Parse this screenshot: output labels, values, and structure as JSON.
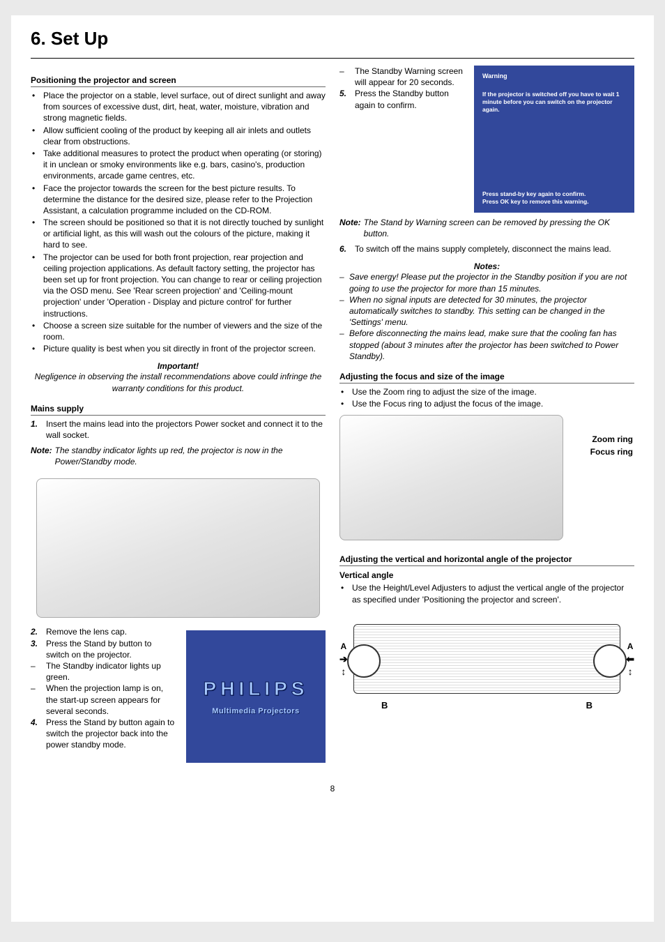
{
  "title": "6. Set Up",
  "page_number": "8",
  "colors": {
    "page_bg": "#eaeaea",
    "panel_bg": "#ffffff",
    "philips_blue": "#32489b",
    "philips_text": "#a7c9ff",
    "text": "#000000"
  },
  "left": {
    "positioning_head": "Positioning the projector and screen",
    "positioning_bullets": [
      "Place the projector on a stable, level surface, out of direct sunlight and away from sources of excessive dust, dirt, heat, water, moisture, vibration and strong magnetic fields.",
      "Allow sufficient cooling of the product by keeping all air inlets and outlets clear from obstructions.",
      "Take additional measures to protect the product when operating (or storing) it in unclean or smoky environments like e.g. bars, casino's, production environments, arcade game centres, etc.",
      "Face the projector towards the screen for the best picture results. To determine the distance for the desired size, please refer to the Projection Assistant, a calculation programme included on the CD-ROM.",
      "The screen should be positioned so that it is not directly touched by sunlight or artificial light, as this will wash out the colours of the picture, making it hard to see.",
      "The projector can be used for both front projection, rear projection and ceiling projection applications. As default factory setting, the projector has been set up for front projection. You can change to rear or ceiling projection via the OSD menu. See 'Rear screen projection' and 'Ceiling-mount projection' under 'Operation - Display and picture control' for further instructions.",
      "Choose a screen size suitable for the number of viewers and the size of the room.",
      "Picture quality is best when you sit directly in front of the projector screen."
    ],
    "important_label": "Important!",
    "important_text": "Negligence in observing the install recommendations above could infringe the warranty conditions for this product.",
    "mains_head": "Mains supply",
    "step1_num": "1.",
    "step1": "Insert the mains lead into the projectors Power socket and connect it to the wall socket.",
    "note1_label": "Note:",
    "note1_text": "The standby indicator lights up red, the projector is now in the Power/Standby mode.",
    "lower_items": [
      {
        "num": "2.",
        "text": "Remove the lens cap."
      },
      {
        "num": "3.",
        "text": "Press the Stand by button to switch on the projector."
      },
      {
        "num": "–",
        "text": "The Standby indicator lights up green."
      },
      {
        "num": "–",
        "text": "When the projection lamp is on, the start-up screen appears for several seconds."
      },
      {
        "num": "4.",
        "text": "Press the Stand by button again to switch the projector back into the power standby mode."
      }
    ],
    "philips_word": "PHILIPS",
    "philips_sub": "Multimedia Projectors"
  },
  "right": {
    "top_items": [
      {
        "num": "–",
        "text": "The Standby Warning screen will appear for 20 seconds."
      },
      {
        "num": "5.",
        "text": "Press the Standby button again to confirm."
      }
    ],
    "warning_title": "Warning",
    "warning_mid": "If the projector is switched off you have to wait 1 minute before you can switch on the projector again.",
    "warning_foot1": "Press stand-by key again to confirm.",
    "warning_foot2": "Press OK key to remove this warning.",
    "note2_label": "Note:",
    "note2_text": "The Stand by Warning screen can be removed by pressing the OK button.",
    "step6_num": "6.",
    "step6": "To switch off the mains supply completely, disconnect the mains lead.",
    "notes_head": "Notes:",
    "notes_list": [
      "Save energy! Please put the projector in the Standby position if you are not going to use the projector for more than 15 minutes.",
      "When no signal inputs are detected for 30 minutes, the projector automatically switches to standby. This setting can be changed in the 'Settings' menu.",
      "Before disconnecting the mains lead, make sure that the cooling fan has stopped (about 3 minutes after the projector has been switched to Power Standby)."
    ],
    "adjust_focus_head": "Adjusting the focus and size of the image",
    "adjust_focus_bullets": [
      "Use the Zoom ring to adjust the size of the image.",
      "Use the Focus ring to adjust the focus of the image."
    ],
    "zoom_label": "Zoom ring",
    "focus_label": "Focus ring",
    "adjust_angle_head": "Adjusting the vertical and horizontal angle of the projector",
    "vertical_head": "Vertical angle",
    "vertical_bullet": "Use the Height/Level Adjusters to adjust the vertical angle of the projector as specified under 'Positioning the projector and screen'.",
    "label_A": "A",
    "label_B": "B"
  }
}
